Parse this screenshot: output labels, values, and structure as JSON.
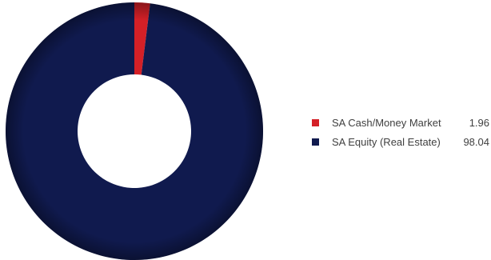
{
  "chart_data": {
    "type": "pie",
    "title": "",
    "slices": [
      {
        "label": "SA Cash/Money Market",
        "value": 1.96,
        "value_label": "1.96",
        "color": "#d42027"
      },
      {
        "label": "SA Equity (Real Estate)",
        "value": 98.04,
        "value_label": "98.04",
        "color": "#101a4e"
      }
    ],
    "donut": true,
    "legend_placement": "right"
  }
}
